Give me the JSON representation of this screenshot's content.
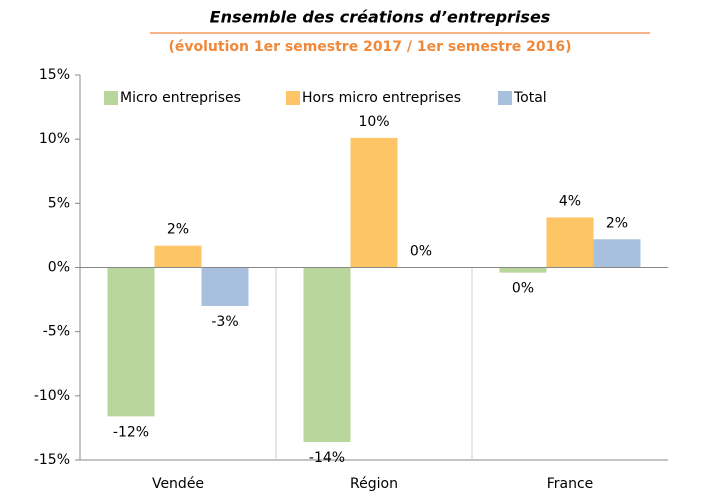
{
  "chart_data": {
    "type": "bar",
    "title": "Ensemble des créations d’entreprises",
    "subtitle": "(évolution 1er semestre 2017 / 1er semestre 2016)",
    "categories": [
      "Vendée",
      "Région",
      "France"
    ],
    "series": [
      {
        "name": "Micro entreprises",
        "color": "#b8d59b",
        "values": [
          -11.6,
          -13.6,
          -0.4
        ],
        "value_labels": [
          "-12%",
          "-14%",
          "0%"
        ]
      },
      {
        "name": "Hors micro entreprises",
        "color": "#fdc566",
        "values": [
          1.7,
          10.1,
          3.9
        ],
        "value_labels": [
          "2%",
          "10%",
          "4%"
        ]
      },
      {
        "name": "Total",
        "color": "#a8c0dd",
        "values": [
          -3.0,
          0,
          2.2
        ],
        "value_labels": [
          "-3%",
          "0%",
          "2%"
        ]
      }
    ],
    "ylim": [
      -15,
      15
    ],
    "yticks": [
      {
        "value": -15,
        "label": "-15%"
      },
      {
        "value": -10,
        "label": "-10%"
      },
      {
        "value": -5,
        "label": "-5%"
      },
      {
        "value": 0,
        "label": "0%"
      },
      {
        "value": 5,
        "label": "5%"
      },
      {
        "value": 10,
        "label": "10%"
      },
      {
        "value": 15,
        "label": "15%"
      }
    ],
    "grid": false,
    "legend": "top"
  }
}
